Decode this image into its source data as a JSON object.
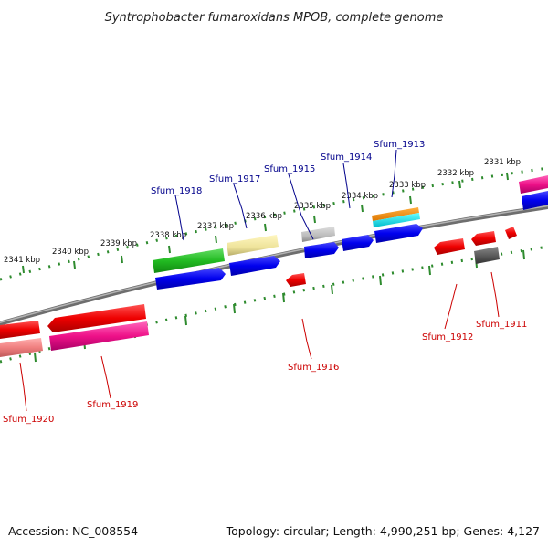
{
  "title": "Syntrophobacter fumaroxidans MPOB, complete genome",
  "footer": {
    "accession": "Accession: NC_008554",
    "summary": "Topology: circular; Length: 4,990,251 bp; Genes: 4,127"
  },
  "scale_labels": [
    "2331 kbp",
    "2332 kbp",
    "2333 kbp",
    "2334 kbp",
    "2335 kbp",
    "2336 kbp",
    "2337 kbp",
    "2338 kbp",
    "2339 kbp",
    "2340 kbp",
    "2341 kbp"
  ],
  "gene_labels": {
    "sfum_1913": "Sfum_1913",
    "sfum_1914": "Sfum_1914",
    "sfum_1915": "Sfum_1915",
    "sfum_1917": "Sfum_1917",
    "sfum_1918": "Sfum_1918",
    "sfum_1911": "Sfum_1911",
    "sfum_1912": "Sfum_1912",
    "sfum_1916": "Sfum_1916",
    "sfum_1919": "Sfum_1919",
    "sfum_1920": "Sfum_1920"
  },
  "colors": {
    "backbone": "#7a7a7a",
    "ticks": "#2e8b2e",
    "forward_cds": "#0000ee",
    "reverse_cds": "#ee1111",
    "top_label": "#00008b",
    "bottom_label": "#cc0000"
  }
}
